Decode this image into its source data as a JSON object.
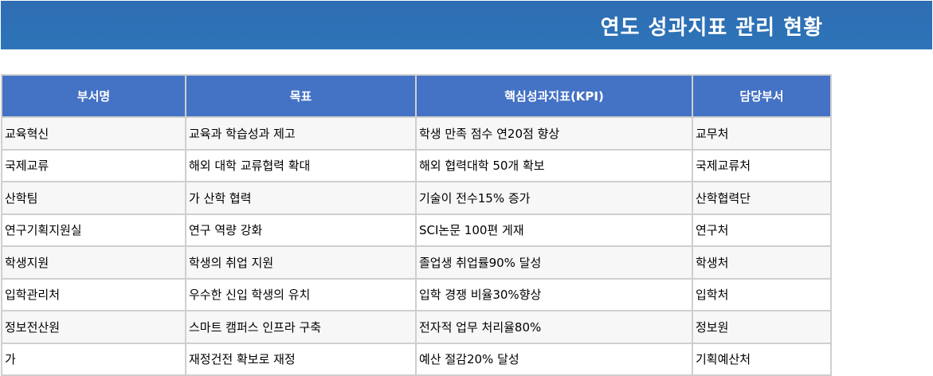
{
  "title": "연도 성과지표 관리 현황",
  "table": {
    "headers": [
      "부서명",
      "목표",
      "핵심성과지표(KPI)",
      "담당부서"
    ],
    "rows": [
      [
        "교육혁신",
        "교육과 학습성과 제고",
        "학생 만족 점수 연20점 향상",
        "교무처"
      ],
      [
        "국제교류",
        "해외 대학 교류협력 확대",
        "해외 협력대학 50개 확보",
        "국제교류처"
      ],
      [
        "산학팀",
        "가 산학 협력",
        "기술이 전수15% 증가",
        "산학협력단"
      ],
      [
        "연구기획지원실",
        "연구 역량 강화",
        "SCI논문 100편 게재",
        "연구처"
      ],
      [
        "학생지원",
        "학생의 취업 지원",
        "졸업생 취업률90% 달성",
        "학생처"
      ],
      [
        "입학관리처",
        "우수한 신입 학생의 유치",
        "입학 경쟁 비율30%향상",
        "입학처"
      ],
      [
        "정보전산원",
        "스마트 캠퍼스 인프라 구축",
        "전자적 업무 처리율80%",
        "정보원"
      ],
      [
        "가",
        "재정건전 확보로 재정",
        "예산 절감20% 달성",
        "기획예산처"
      ]
    ]
  }
}
